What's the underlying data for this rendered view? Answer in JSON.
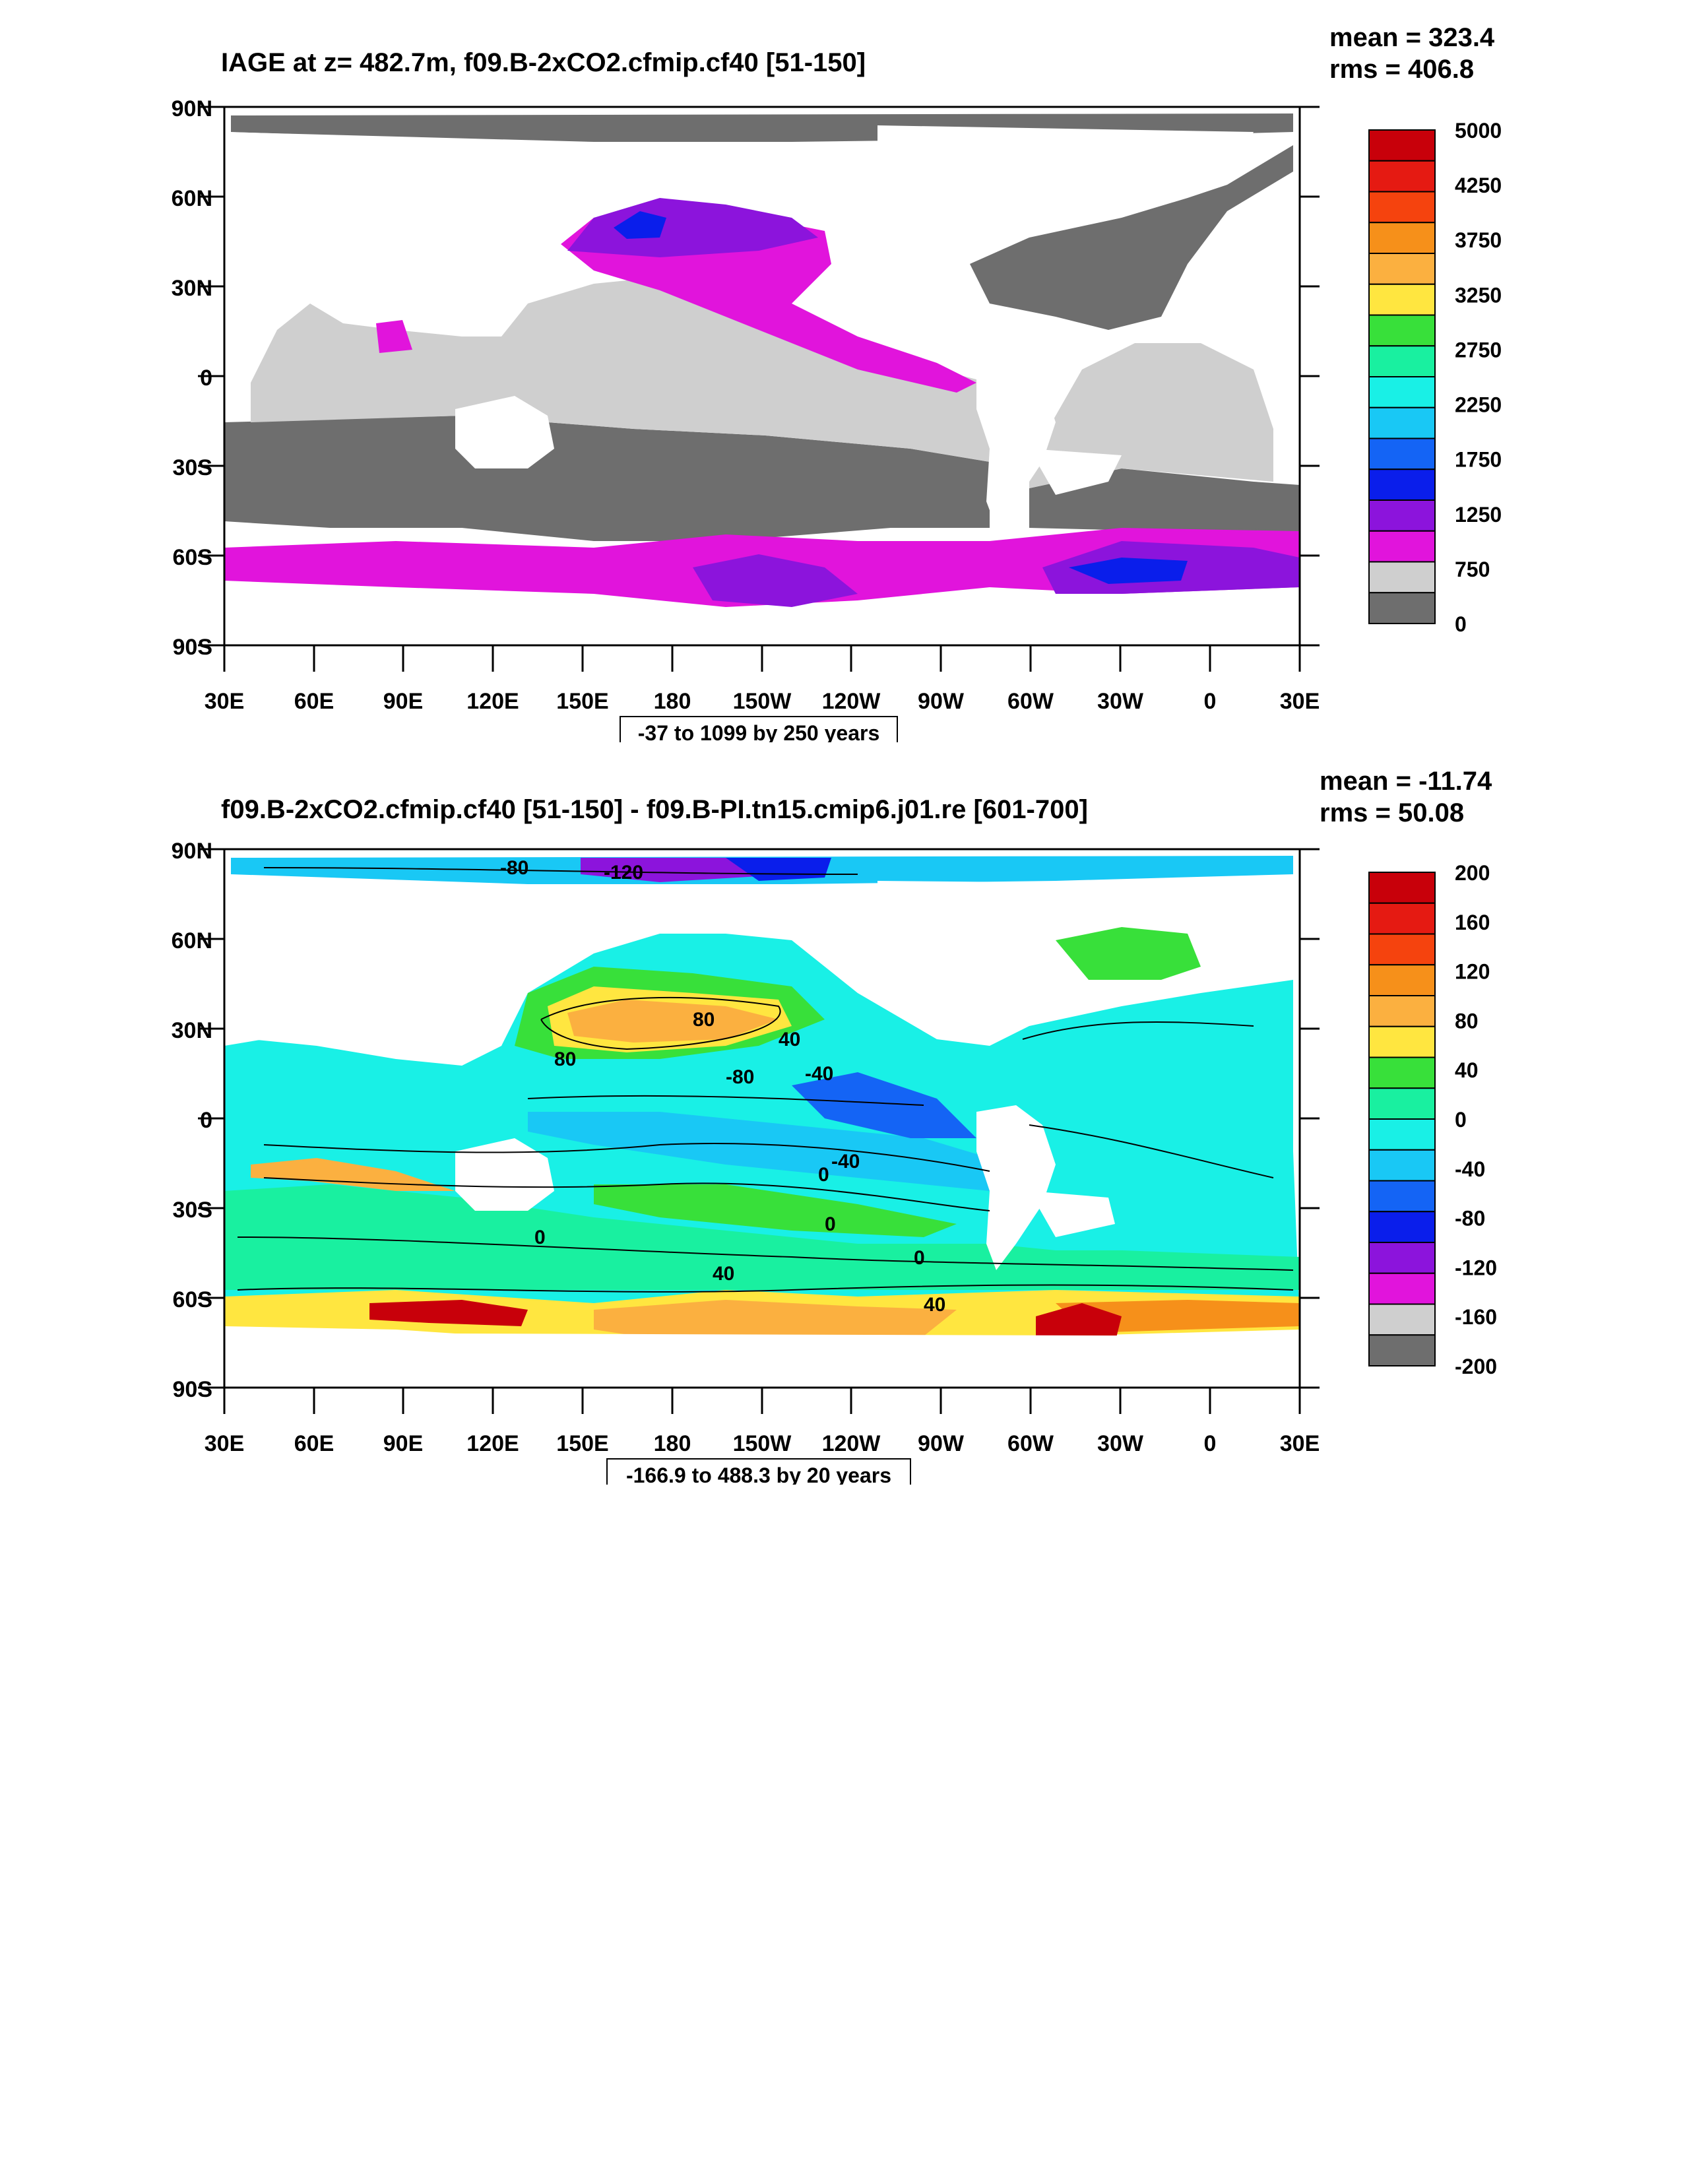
{
  "colors": {
    "land": "#ffffff",
    "frame": "#000000",
    "contour": "#000000"
  },
  "panels": [
    {
      "id": "top",
      "title": "IAGE at z= 482.7m, f09.B-2xCO2.cfmip.cf40 [51-150]",
      "stats": {
        "mean": "mean = 323.4",
        "rms": "rms = 406.8"
      },
      "range_label": "-37 to 1099 by 250 years",
      "lat_ticks": [
        "90N",
        "60N",
        "30N",
        "0",
        "30S",
        "60S",
        "90S"
      ],
      "lon_ticks": [
        "30E",
        "60E",
        "90E",
        "120E",
        "150E",
        "180",
        "150W",
        "120W",
        "90W",
        "60W",
        "30W",
        "0",
        "30E"
      ],
      "colorbar": {
        "labels": [
          "5000",
          "4250",
          "3750",
          "3250",
          "2750",
          "2250",
          "1750",
          "1250",
          "750",
          "0"
        ],
        "colors": [
          "#c8000a",
          "#e51a12",
          "#f5430e",
          "#f6901a",
          "#fbb040",
          "#ffe640",
          "#38e03a",
          "#19f0a0",
          "#19f0e6",
          "#19c8f5",
          "#1464f5",
          "#0a1eeb",
          "#8c14dc",
          "#e114dc",
          "#cfcfcf",
          "#6e6e6e"
        ]
      },
      "contour_labels": []
    },
    {
      "id": "bottom",
      "title": "f09.B-2xCO2.cfmip.cf40 [51-150] - f09.B-PI.tn15.cmip6.j01.re [601-700]",
      "stats": {
        "mean": "mean = -11.74",
        "rms": "rms = 50.08"
      },
      "range_label": "-166.9 to 488.3 by 20 years",
      "lat_ticks": [
        "90N",
        "60N",
        "30N",
        "0",
        "30S",
        "60S",
        "90S"
      ],
      "lon_ticks": [
        "30E",
        "60E",
        "90E",
        "120E",
        "150E",
        "180",
        "150W",
        "120W",
        "90W",
        "60W",
        "30W",
        "0",
        "30E"
      ],
      "colorbar": {
        "labels": [
          "200",
          "160",
          "120",
          "80",
          "40",
          "0",
          "-40",
          "-80",
          "-120",
          "-160",
          "-200"
        ],
        "colors": [
          "#c8000a",
          "#e51a12",
          "#f5430e",
          "#f6901a",
          "#fbb040",
          "#ffe640",
          "#38e03a",
          "#19f0a0",
          "#19f0e6",
          "#19c8f5",
          "#1464f5",
          "#0a1eeb",
          "#8c14dc",
          "#e114dc",
          "#cfcfcf",
          "#6e6e6e"
        ]
      },
      "contour_labels": [
        "-80",
        "-120",
        "80",
        "40",
        "80",
        "-80",
        "-40",
        "-40",
        "0",
        "0",
        "0",
        "40",
        "40",
        "0"
      ]
    }
  ]
}
